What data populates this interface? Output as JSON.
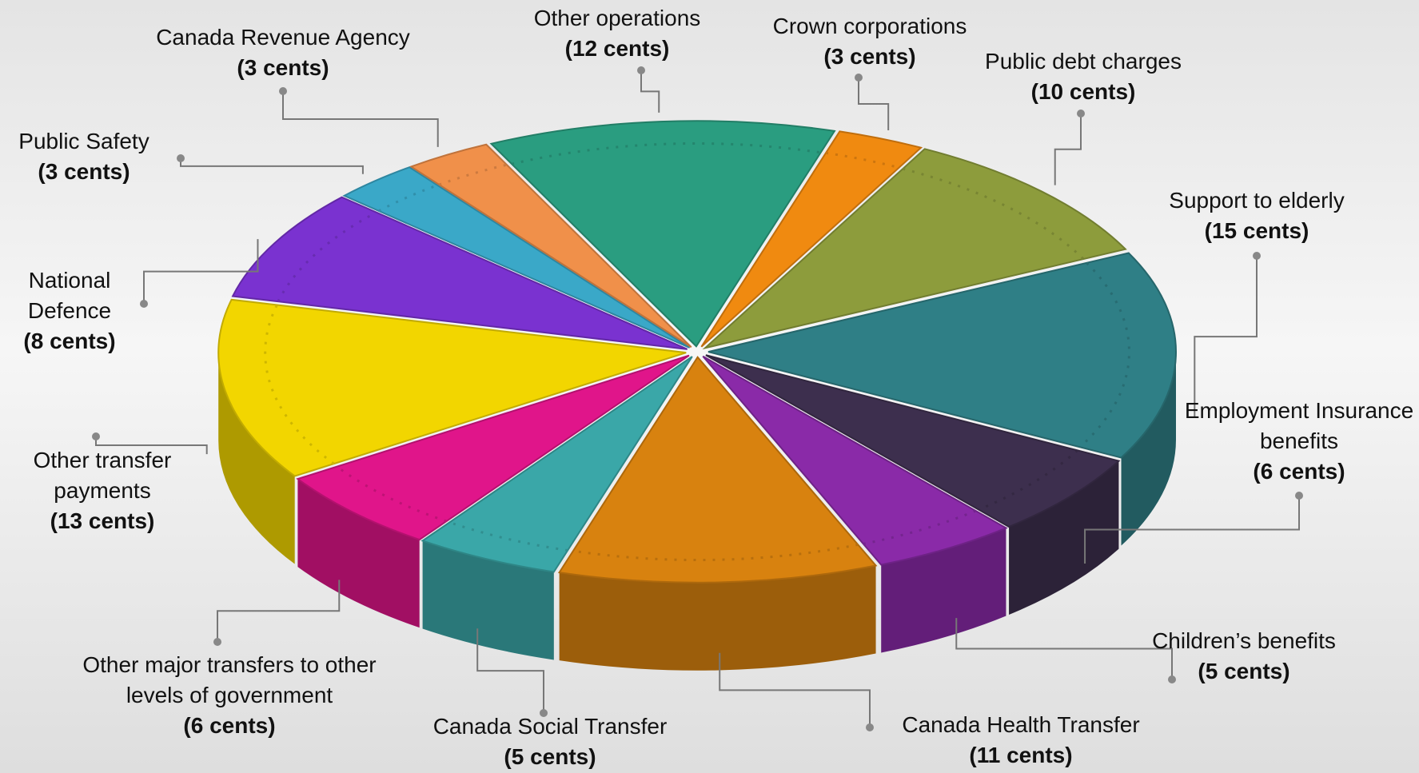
{
  "chart_data": {
    "type": "pie",
    "categories": [
      "Other operations",
      "Crown corporations",
      "Public debt charges",
      "Support to elderly",
      "Employment Insurance benefits",
      "Children’s benefits",
      "Canada Health Transfer",
      "Canada Social Transfer",
      "Other major transfers to other levels of government",
      "Other transfer payments",
      "National Defence",
      "Public Safety",
      "Canada Revenue Agency"
    ],
    "values": [
      12,
      3,
      10,
      15,
      6,
      5,
      11,
      5,
      6,
      13,
      8,
      3,
      3
    ],
    "value_labels": [
      "(12 cents)",
      "(3 cents)",
      "(10 cents)",
      "(15 cents)",
      "(6 cents)",
      "(5 cents)",
      "(11 cents)",
      "(5 cents)",
      "(6 cents)",
      "(13 cents)",
      "(8 cents)",
      "(3 cents)",
      "(3 cents)"
    ],
    "colors": [
      "#2a9d80",
      "#f08a10",
      "#8d9c3c",
      "#2f7f86",
      "#3d2f4e",
      "#8a2aa8",
      "#d8820f",
      "#3aa7a8",
      "#e0158a",
      "#f2d600",
      "#7a32d0",
      "#3aa8c8",
      "#f0904a"
    ]
  }
}
